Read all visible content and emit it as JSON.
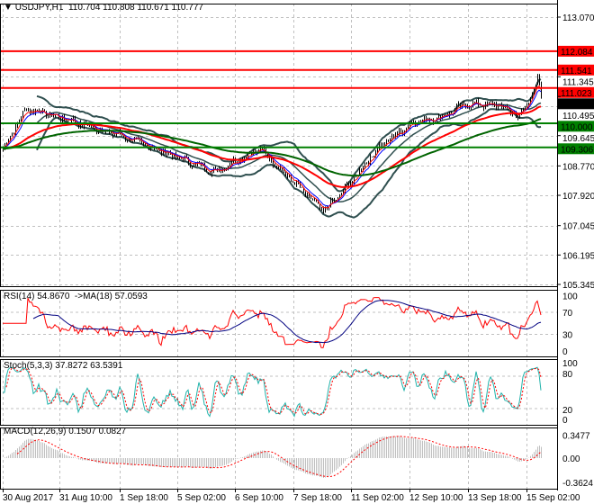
{
  "header": {
    "menu_icon": "triangle-down-icon",
    "symbol": "USDJPY,H1",
    "ohlc": "110.704 110.808 110.671 110.777"
  },
  "price_axis": {
    "ticks": [
      "113.070",
      "111.345",
      "110.495",
      "109.645",
      "108.770",
      "107.920",
      "107.045",
      "106.195",
      "105.345"
    ]
  },
  "levels": [
    {
      "price": "112.084",
      "color": "#ff0000"
    },
    {
      "price": "111.541",
      "color": "#ff0000"
    },
    {
      "price": "111.023",
      "color": "#ff0000"
    },
    {
      "price": "110.000",
      "color": "#008000"
    },
    {
      "price": "109.306",
      "color": "#008000"
    }
  ],
  "current_price": {
    "value": "110.777",
    "color": "#000000"
  },
  "rsi_panel": {
    "label": "RSI(14) 54.8670  ->MA(18) 57.0593",
    "ticks": [
      "100",
      "70",
      "30",
      "0"
    ],
    "line_color": "#ff0000",
    "ma_color": "#000080"
  },
  "stoch_panel": {
    "label": "Stoch(5,3,3) 37.8272 63.5391",
    "ticks": [
      "100",
      "80",
      "20",
      "0"
    ],
    "main_color": "#20b2aa",
    "signal_color": "#ff0000"
  },
  "macd_panel": {
    "label": "MACD(12,26,9) 0.1507 0.0827",
    "ticks": [
      "0.3477",
      "0.00",
      "-0.3624"
    ],
    "hist_color": "#c0c0c0",
    "signal_color": "#ff0000"
  },
  "time_axis": [
    "30 Aug 2017",
    "31 Aug 10:00",
    "1 Sep 18:00",
    "5 Sep 02:00",
    "6 Sep 10:00",
    "7 Sep 18:00",
    "11 Sep 02:00",
    "12 Sep 10:00",
    "13 Sep 18:00",
    "15 Sep 02:00"
  ],
  "chart_data": {
    "type": "candlestick",
    "symbol": "USDJPY",
    "timeframe": "H1",
    "ylim": [
      105.345,
      113.07
    ],
    "grid": true,
    "approx_close_path": [
      {
        "t": "30 Aug 2017",
        "close": 109.27
      },
      {
        "t": "30 Aug",
        "close": 110.44
      },
      {
        "t": "31 Aug 10:00",
        "close": 110.18
      },
      {
        "t": "1 Sep",
        "close": 109.92
      },
      {
        "t": "1 Sep 18:00",
        "close": 109.66
      },
      {
        "t": "5 Sep 02:00",
        "close": 109.0
      },
      {
        "t": "5 Sep",
        "close": 108.6
      },
      {
        "t": "6 Sep 10:00",
        "close": 108.88
      },
      {
        "t": "6 Sep",
        "close": 109.27
      },
      {
        "t": "7 Sep 18:00",
        "close": 108.49
      },
      {
        "t": "8 Sep",
        "close": 107.45
      },
      {
        "t": "11 Sep 02:00",
        "close": 107.97
      },
      {
        "t": "11 Sep",
        "close": 109.27
      },
      {
        "t": "12 Sep 10:00",
        "close": 110.05
      },
      {
        "t": "12 Sep",
        "close": 110.18
      },
      {
        "t": "13 Sep 18:00",
        "close": 110.57
      },
      {
        "t": "14 Sep",
        "close": 110.5
      },
      {
        "t": "15 Sep 02:00",
        "close": 110.18
      },
      {
        "t": "15 Sep",
        "close": 110.7
      },
      {
        "t": "15 Sep",
        "close": 111.27
      },
      {
        "t": "15 Sep",
        "close": 110.777
      }
    ],
    "overlays": [
      "Bollinger Bands",
      "Moving Average (red)",
      "Moving Average (green)",
      "Moving Average (blue)"
    ]
  }
}
